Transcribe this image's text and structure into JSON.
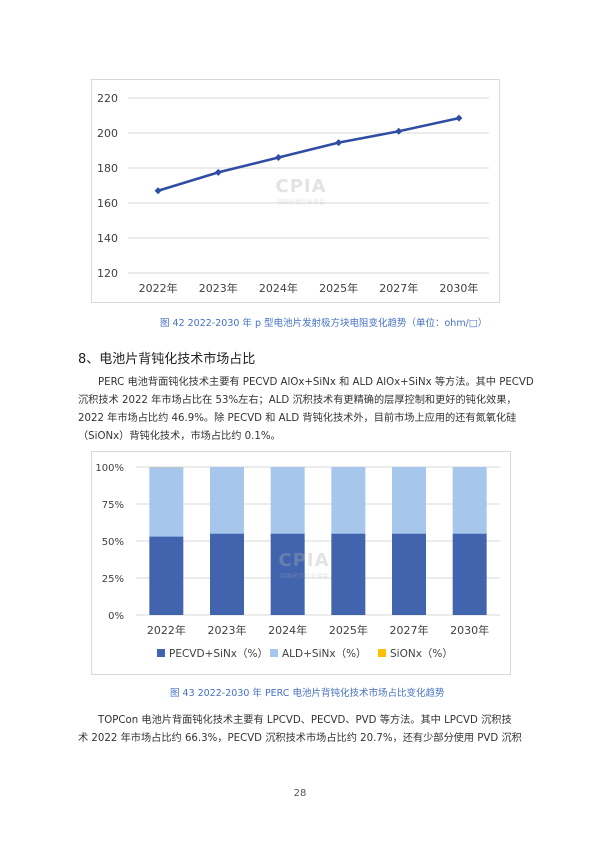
{
  "chart_data": [
    {
      "type": "line",
      "categories": [
        "2022年",
        "2023年",
        "2024年",
        "2025年",
        "2027年",
        "2030年"
      ],
      "series": [
        {
          "values": [
            167,
            177.5,
            186,
            194.5,
            201,
            208.5
          ],
          "color": "#2f4ea3"
        }
      ],
      "y_ticks": [
        "220",
        "200",
        "180",
        "160",
        "140",
        "120"
      ],
      "ylim": [
        120,
        220
      ],
      "grid": true,
      "title": "",
      "xlabel": "",
      "ylabel": ""
    },
    {
      "type": "bar",
      "stacked": true,
      "categories": [
        "2022年",
        "2023年",
        "2024年",
        "2025年",
        "2027年",
        "2030年"
      ],
      "series": [
        {
          "name": "PECVD+SiNx（%）",
          "values": [
            53,
            55,
            55,
            55,
            55,
            55
          ],
          "color": "#4264ae"
        },
        {
          "name": "ALD+SiNx（%）",
          "values": [
            46.9,
            45,
            45,
            45,
            45,
            45
          ],
          "color": "#a6c6ec"
        },
        {
          "name": "SiONx（%）",
          "values": [
            0.1,
            0,
            0,
            0,
            0,
            0
          ],
          "color": "#ffc000"
        }
      ],
      "y_ticks": [
        "100%",
        "75%",
        "50%",
        "25%",
        "0%"
      ],
      "ylim": [
        0,
        100
      ],
      "grid": true,
      "legend_position": "bottom",
      "title": "",
      "xlabel": "",
      "ylabel": ""
    }
  ],
  "watermark": {
    "text": "CPIA",
    "sub": "中国光伏行业协会"
  },
  "captions": {
    "fig42": "图 42    2022-2030 年 p 型电池片发射极方块电阻变化趋势（单位：ohm/□）",
    "fig43": "图 43    2022-2030 年 PERC 电池片背钝化技术市场占比变化趋势"
  },
  "heading": "8、电池片背钝化技术市场占比",
  "para1": [
    "PERC 电池背面钝化技术主要有 PECVD AlOx+SiNx 和 ALD AlOx+SiNx 等方法。其中 PECVD",
    "沉积技术 2022 年市场占比在 53%左右；ALD 沉积技术有更精确的层厚控制和更好的钝化效果，",
    "2022 年市场占比约 46.9%。除 PECVD 和 ALD 背钝化技术外，目前市场上应用的还有氮氧化硅",
    "（SiONx）背钝化技术，市场占比约 0.1%。"
  ],
  "para2": [
    "TOPCon 电池片背面钝化技术主要有 LPCVD、PECVD、PVD 等方法。其中 LPCVD 沉积技",
    "术 2022 年市场占比约 66.3%，PECVD 沉积技术市场占比约 20.7%，还有少部分使用 PVD 沉积"
  ],
  "page_number": "28"
}
